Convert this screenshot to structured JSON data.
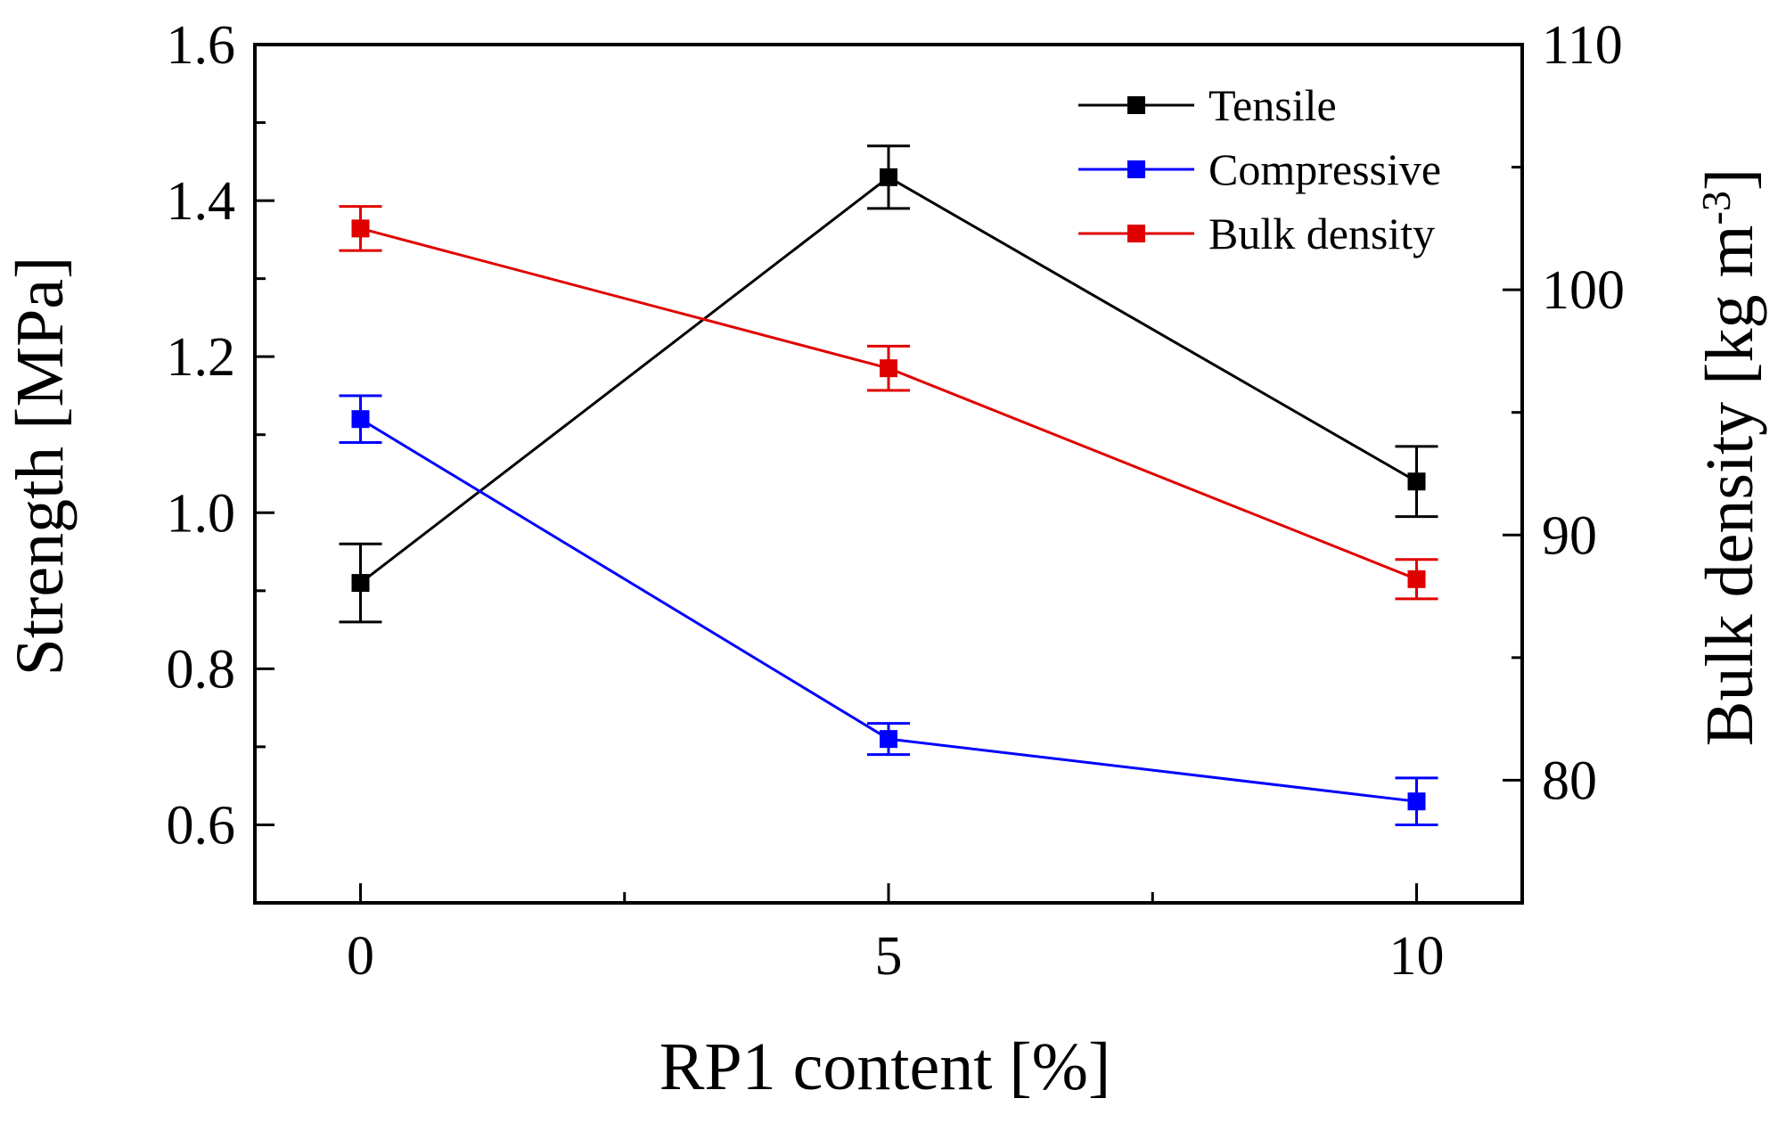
{
  "chart_data": {
    "type": "line",
    "title": "",
    "xlabel": "RP1 content [%]",
    "ylabel_left": "Strength [MPa]",
    "ylabel_right": "Bulk density [kg m",
    "ylabel_right_exponent": "-3",
    "ylabel_right_close": "]",
    "x": [
      0,
      5,
      10
    ],
    "xlim": [
      -1,
      11
    ],
    "xticks": [
      "0",
      "5",
      "10"
    ],
    "ylim_left": [
      0.5,
      1.6
    ],
    "yticks_left": [
      "0.6",
      "0.8",
      "1.0",
      "1.2",
      "1.4",
      "1.6"
    ],
    "ylim_right": [
      75,
      110
    ],
    "yticks_right": [
      "80",
      "90",
      "100",
      "110"
    ],
    "legend_position": "top-right",
    "series": [
      {
        "name": "Tensile",
        "axis": "left",
        "color": "#000000",
        "values": [
          0.91,
          1.43,
          1.04
        ],
        "errors": [
          0.05,
          0.04,
          0.045
        ]
      },
      {
        "name": "Compressive",
        "axis": "left",
        "color": "#0000ff",
        "values": [
          1.12,
          0.71,
          0.63
        ],
        "errors": [
          0.03,
          0.02,
          0.03
        ]
      },
      {
        "name": "Bulk density",
        "axis": "right",
        "color": "#e00000",
        "values": [
          102.5,
          96.8,
          88.2
        ],
        "errors": [
          0.9,
          0.9,
          0.8
        ]
      }
    ]
  }
}
